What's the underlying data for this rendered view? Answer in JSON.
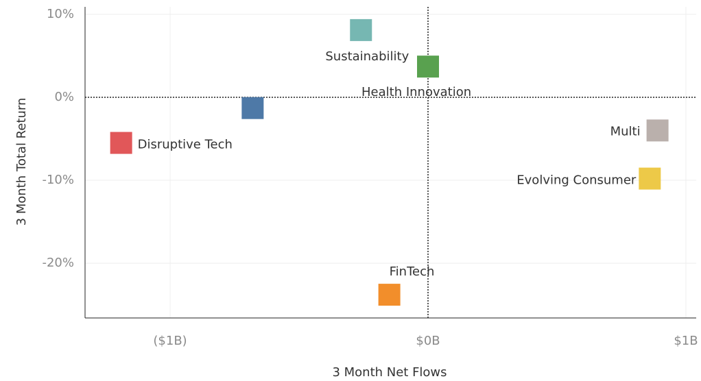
{
  "chart_data": {
    "type": "scatter",
    "xlabel": "3 Month Net Flows",
    "ylabel": "3 Month Total Return",
    "xlim": [
      -1.33,
      1.04
    ],
    "ylim": [
      -26.6,
      10.9
    ],
    "xticks": [
      {
        "value": -1,
        "label": "($1B)"
      },
      {
        "value": 0,
        "label": "$0B"
      },
      {
        "value": 1,
        "label": "$1B"
      }
    ],
    "yticks": [
      {
        "value": 10,
        "label": "10%"
      },
      {
        "value": 0,
        "label": "0%"
      },
      {
        "value": -10,
        "label": "-10%"
      },
      {
        "value": -20,
        "label": "-20%"
      }
    ],
    "grid": true,
    "reference_lines": true,
    "points": [
      {
        "name": "Sustainability",
        "x": -0.26,
        "y": 8.1,
        "color": "#76b7b2"
      },
      {
        "name": "Health Innovation",
        "x": 0.0,
        "y": 3.7,
        "color": "#59a14f"
      },
      {
        "name": null,
        "x": -0.68,
        "y": -1.3,
        "color": "#4e79a7"
      },
      {
        "name": "Disruptive Tech",
        "x": -1.19,
        "y": -5.5,
        "color": "#e15759"
      },
      {
        "name": "Multi",
        "x": 0.89,
        "y": -4.0,
        "color": "#bab0ac"
      },
      {
        "name": "Evolving Consumer",
        "x": 0.86,
        "y": -9.8,
        "color": "#edc948"
      },
      {
        "name": "FinTech",
        "x": -0.15,
        "y": -23.8,
        "color": "#f28e2b"
      }
    ]
  }
}
